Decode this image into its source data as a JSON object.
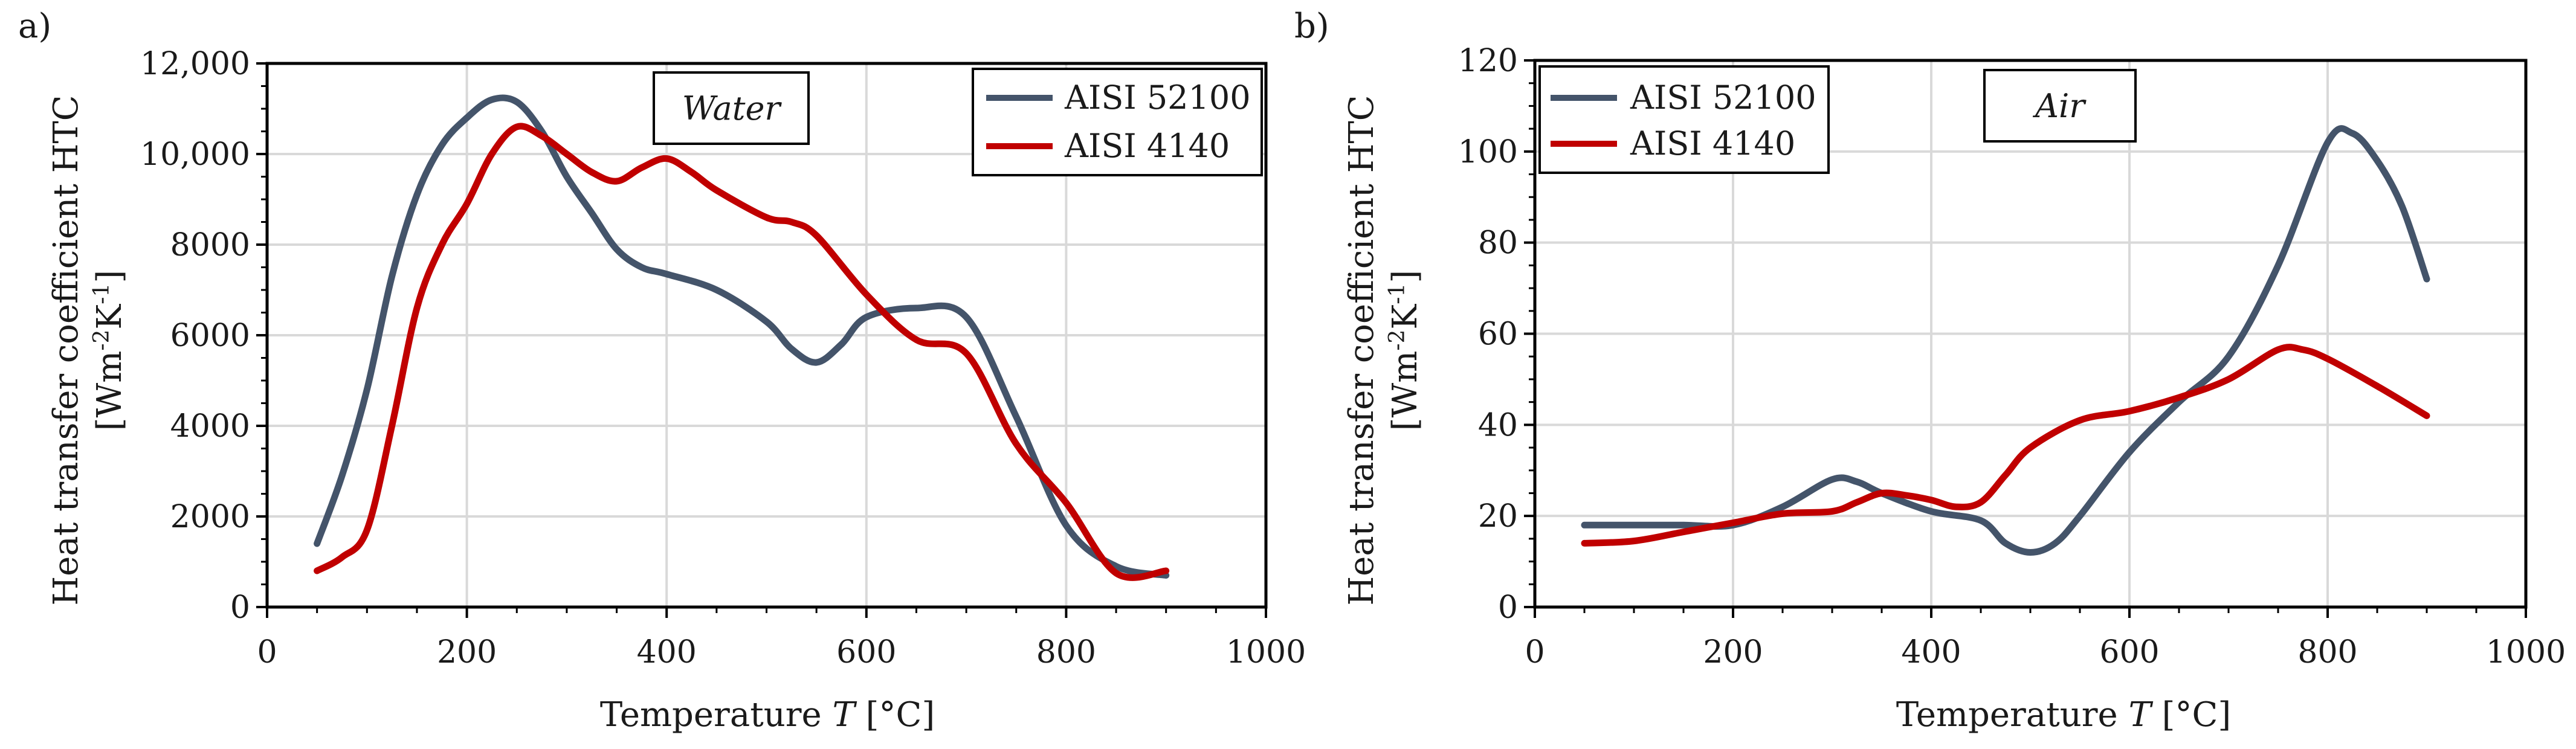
{
  "chart_data": [
    {
      "panel": "a)",
      "type": "line",
      "annotation": "Water",
      "xlabel_main": "Temperature ",
      "xlabel_var": "T",
      "xlabel_unit": " [°C]",
      "ylabel_line1": "Heat transfer coefficient HTC",
      "ylabel_line2": "[Wm-2K-1]",
      "ylabel_unit_base": "[Wm",
      "ylabel_exp1": "-2",
      "ylabel_mid": "K",
      "ylabel_exp2": "-1",
      "ylabel_close": "]",
      "xlim": [
        0,
        1000
      ],
      "ylim": [
        0,
        12000
      ],
      "xticks": [
        0,
        200,
        400,
        600,
        800,
        1000
      ],
      "yticks": [
        0,
        2000,
        4000,
        6000,
        8000,
        10000,
        12000
      ],
      "xtick_labels": [
        "0",
        "200",
        "400",
        "600",
        "800",
        "1000"
      ],
      "ytick_labels": [
        "0",
        "2000",
        "4000",
        "6000",
        "8000",
        "10,000",
        "12,000"
      ],
      "grid": true,
      "legend_position": "top-right",
      "series": [
        {
          "name": "AISI 52100",
          "color": "#44546a",
          "x": [
            50,
            75,
            100,
            125,
            150,
            175,
            200,
            225,
            250,
            275,
            300,
            325,
            350,
            375,
            400,
            450,
            500,
            525,
            550,
            575,
            600,
            650,
            700,
            750,
            800,
            850,
            900
          ],
          "y": [
            1400,
            2900,
            4800,
            7300,
            9100,
            10200,
            10800,
            11200,
            11150,
            10500,
            9500,
            8700,
            7900,
            7500,
            7350,
            7000,
            6300,
            5700,
            5400,
            5800,
            6400,
            6600,
            6400,
            4200,
            1800,
            900,
            700
          ]
        },
        {
          "name": "AISI 4140",
          "color": "#c00000",
          "x": [
            50,
            75,
            100,
            125,
            150,
            175,
            200,
            225,
            250,
            275,
            300,
            325,
            350,
            375,
            400,
            425,
            450,
            500,
            525,
            550,
            600,
            650,
            700,
            750,
            800,
            850,
            900
          ],
          "y": [
            800,
            1100,
            1700,
            4000,
            6600,
            8000,
            8900,
            10000,
            10600,
            10400,
            10000,
            9600,
            9400,
            9700,
            9900,
            9600,
            9200,
            8600,
            8500,
            8200,
            6900,
            5900,
            5600,
            3600,
            2300,
            750,
            800
          ]
        }
      ]
    },
    {
      "panel": "b)",
      "type": "line",
      "annotation": "Air",
      "xlabel_main": "Temperature ",
      "xlabel_var": "T",
      "xlabel_unit": " [°C]",
      "ylabel_line1": "Heat transfer coefficient HTC",
      "ylabel_line2": "[Wm-2K-1]",
      "ylabel_unit_base": "[Wm",
      "ylabel_exp1": "-2",
      "ylabel_mid": "K",
      "ylabel_exp2": "-1",
      "ylabel_close": "]",
      "xlim": [
        0,
        1000
      ],
      "ylim": [
        0,
        120
      ],
      "xticks": [
        0,
        200,
        400,
        600,
        800,
        1000
      ],
      "yticks": [
        0,
        20,
        40,
        60,
        80,
        100,
        120
      ],
      "xtick_labels": [
        "0",
        "200",
        "400",
        "600",
        "800",
        "1000"
      ],
      "ytick_labels": [
        "0",
        "20",
        "40",
        "60",
        "80",
        "100",
        "120"
      ],
      "grid": true,
      "legend_position": "top-left",
      "series": [
        {
          "name": "AISI 52100",
          "color": "#44546a",
          "x": [
            50,
            100,
            150,
            200,
            250,
            300,
            325,
            350,
            400,
            450,
            475,
            500,
            525,
            550,
            600,
            650,
            700,
            750,
            800,
            825,
            850,
            875,
            900
          ],
          "y": [
            18,
            18,
            18,
            18,
            22,
            28,
            27.5,
            25,
            21,
            19,
            14,
            12,
            14,
            20,
            34,
            45,
            55,
            75,
            102,
            104,
            98,
            88,
            72
          ]
        },
        {
          "name": "AISI 4140",
          "color": "#c00000",
          "x": [
            50,
            100,
            150,
            200,
            250,
            300,
            325,
            350,
            375,
            400,
            425,
            450,
            475,
            500,
            550,
            600,
            650,
            700,
            750,
            775,
            800,
            850,
            900
          ],
          "y": [
            14,
            14.5,
            16.5,
            18.5,
            20.5,
            21,
            23,
            25,
            24.5,
            23.5,
            22,
            23,
            29,
            35,
            41,
            43,
            46,
            50,
            56.5,
            56.5,
            54.5,
            48.5,
            42
          ]
        }
      ]
    }
  ]
}
